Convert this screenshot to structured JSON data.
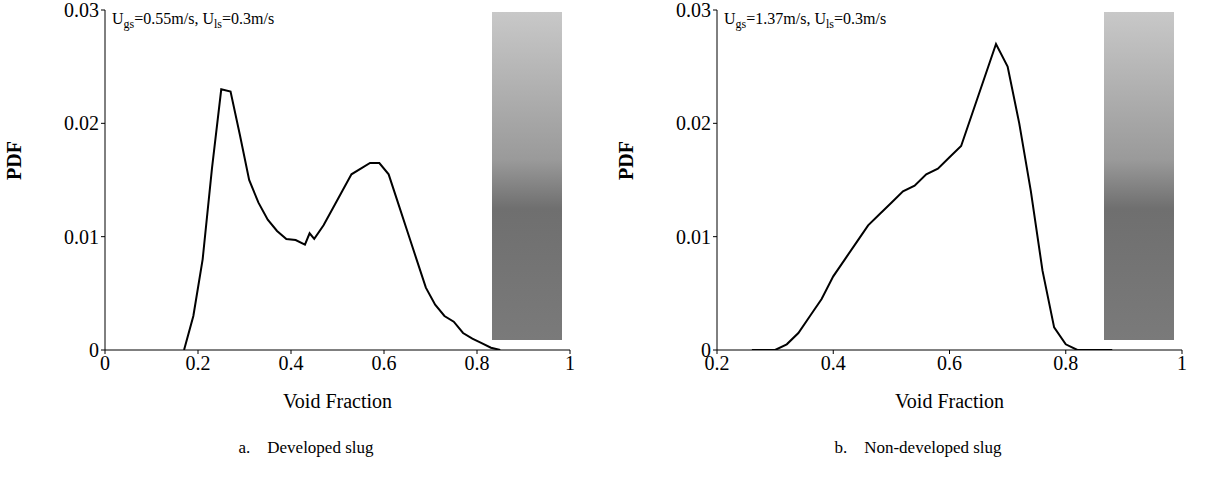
{
  "chart_data": [
    {
      "type": "line",
      "annotation": "Ugs=0.55m/s, Uls=0.3m/s",
      "caption": "a.    Developed slug",
      "xlabel": "Void Fraction",
      "ylabel": "PDF",
      "color": "#000000",
      "x": [
        0.17,
        0.19,
        0.21,
        0.23,
        0.25,
        0.27,
        0.29,
        0.31,
        0.33,
        0.35,
        0.37,
        0.39,
        0.41,
        0.43,
        0.44,
        0.45,
        0.47,
        0.49,
        0.51,
        0.53,
        0.55,
        0.57,
        0.59,
        0.61,
        0.63,
        0.65,
        0.67,
        0.69,
        0.71,
        0.73,
        0.75,
        0.77,
        0.79,
        0.81,
        0.83,
        0.85
      ],
      "values": [
        0,
        0.003,
        0.008,
        0.016,
        0.023,
        0.0228,
        0.019,
        0.015,
        0.013,
        0.0115,
        0.0105,
        0.0098,
        0.0097,
        0.0093,
        0.0103,
        0.0098,
        0.011,
        0.0125,
        0.014,
        0.0155,
        0.016,
        0.0165,
        0.0165,
        0.0155,
        0.013,
        0.0105,
        0.008,
        0.0055,
        0.004,
        0.003,
        0.0025,
        0.0015,
        0.001,
        0.0006,
        0.0002,
        0
      ],
      "xlim": [
        0,
        1
      ],
      "xticks": [
        0,
        0.2,
        0.4,
        0.6,
        0.8,
        1
      ],
      "ylim": [
        0,
        0.03
      ],
      "yticks": [
        0,
        0.01,
        0.02,
        0.03
      ]
    },
    {
      "type": "line",
      "annotation": "Ugs=1.37m/s, Uls=0.3m/s",
      "caption": "b.    Non-developed slug",
      "xlabel": "Void Fraction",
      "ylabel": "PDF",
      "color": "#000000",
      "x": [
        0.26,
        0.3,
        0.32,
        0.34,
        0.36,
        0.38,
        0.4,
        0.42,
        0.44,
        0.46,
        0.48,
        0.5,
        0.52,
        0.54,
        0.56,
        0.58,
        0.6,
        0.62,
        0.64,
        0.66,
        0.68,
        0.7,
        0.72,
        0.74,
        0.76,
        0.78,
        0.8,
        0.82,
        0.86,
        0.88
      ],
      "values": [
        0,
        0,
        0.0005,
        0.0015,
        0.003,
        0.0045,
        0.0065,
        0.008,
        0.0095,
        0.011,
        0.012,
        0.013,
        0.014,
        0.0145,
        0.0155,
        0.016,
        0.017,
        0.018,
        0.021,
        0.024,
        0.027,
        0.025,
        0.02,
        0.014,
        0.007,
        0.002,
        0.0005,
        0,
        0,
        0
      ],
      "xlim": [
        0.2,
        1
      ],
      "xticks": [
        0.2,
        0.4,
        0.6,
        0.8,
        1
      ],
      "ylim": [
        0,
        0.03
      ],
      "yticks": [
        0,
        0.01,
        0.02,
        0.03
      ]
    }
  ]
}
